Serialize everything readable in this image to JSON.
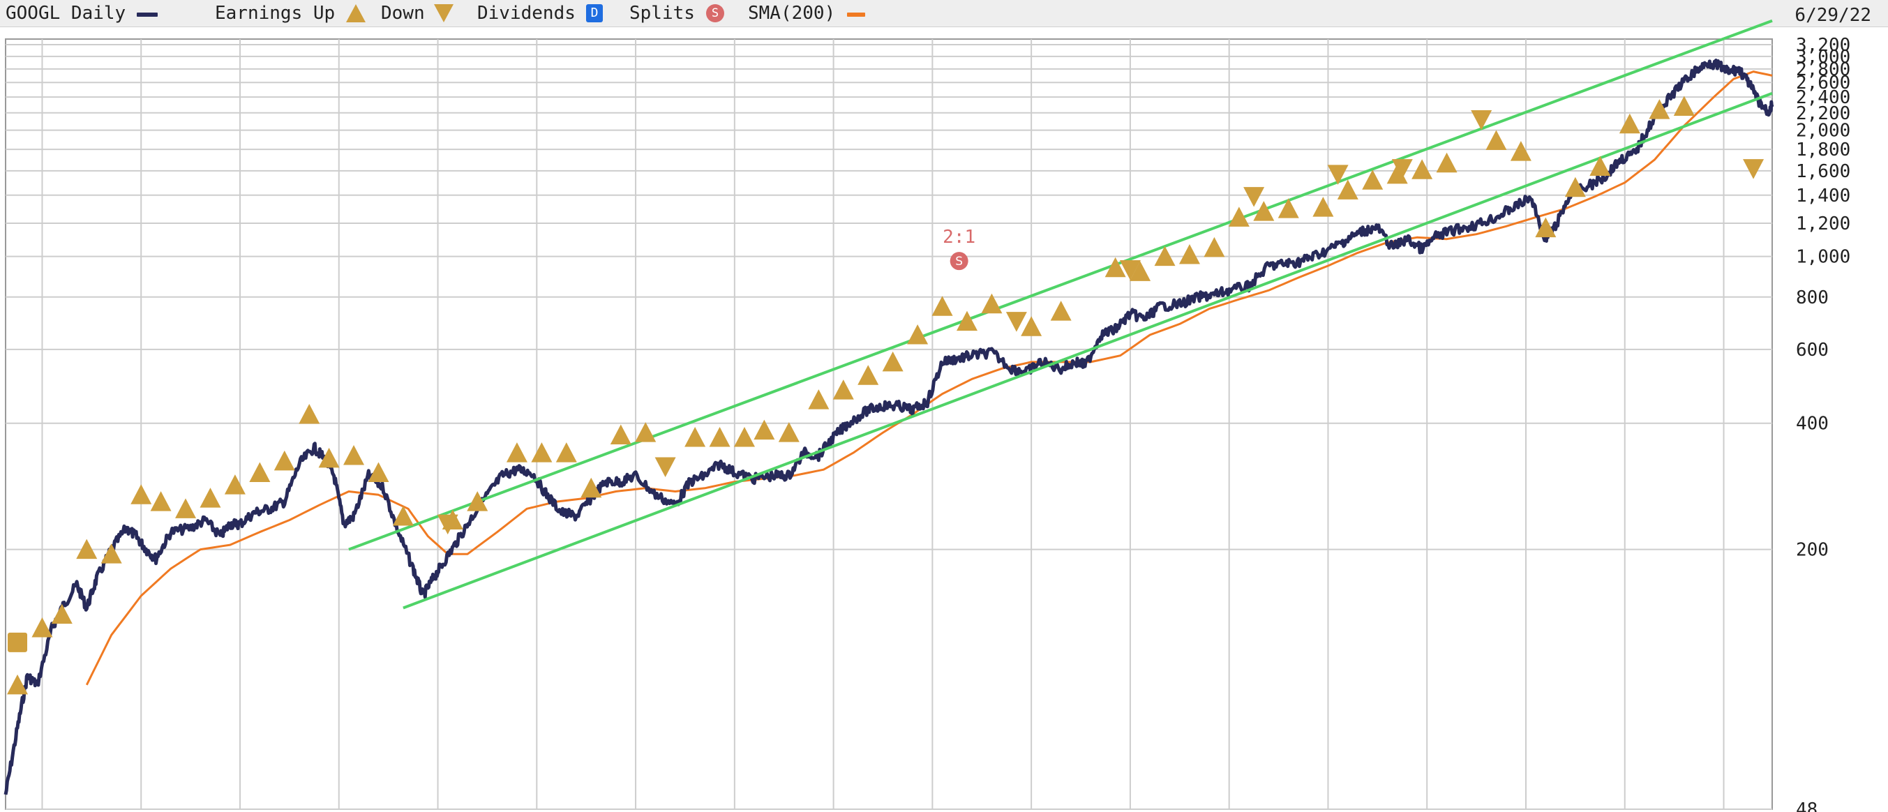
{
  "legend": {
    "ticker": "GOOGL Daily",
    "earnings_label": "Earnings Up",
    "down_label": "Down",
    "dividends_label": "Dividends",
    "dividend_symbol": "D",
    "splits_label": "Splits",
    "split_symbol": "S",
    "sma_label": "SMA(200)",
    "date": "6/29/22"
  },
  "colors": {
    "price": "#272a5a",
    "sma": "#f07a22",
    "trendline": "#4fd367",
    "earnings": "#cf9f3d",
    "dividends": "#1f6de0",
    "splits": "#d86a6a",
    "grid": "#cdcdcd"
  },
  "chart_data": {
    "type": "line",
    "scale": "log",
    "x_range": [
      2004.63,
      2022.49
    ],
    "ylim": [
      48,
      3300
    ],
    "y_ticks": [
      "3,200",
      "3,000",
      "2,800",
      "2,600",
      "2,400",
      "2,200",
      "2,000",
      "1,800",
      "1,600",
      "1,400",
      "1,200",
      "1,000",
      "800",
      "600",
      "400",
      "200",
      "48"
    ],
    "y_tick_values": [
      3200,
      3000,
      2800,
      2600,
      2400,
      2200,
      2000,
      1800,
      1600,
      1400,
      1200,
      1000,
      800,
      600,
      400,
      200,
      48
    ],
    "grid_years": [
      2005,
      2006,
      2007,
      2008,
      2009,
      2010,
      2011,
      2012,
      2013,
      2014,
      2015,
      2016,
      2017,
      2018,
      2019,
      2020,
      2021,
      2022
    ],
    "series": [
      {
        "x": [
          2004.63,
          2004.75,
          2004.85,
          2004.95,
          2005.1,
          2005.2,
          2005.35,
          2005.45,
          2005.55,
          2005.7,
          2005.85,
          2005.95,
          2006.05,
          2006.15,
          2006.3,
          2006.5,
          2006.65,
          2006.8,
          2006.9,
          2007.0,
          2007.15,
          2007.3,
          2007.45,
          2007.6,
          2007.75,
          2007.85,
          2007.95,
          2008.05,
          2008.15,
          2008.3,
          2008.45,
          2008.6,
          2008.75,
          2008.85,
          2008.95,
          2009.05,
          2009.2,
          2009.35,
          2009.5,
          2009.65,
          2009.8,
          2009.95,
          2010.1,
          2010.25,
          2010.4,
          2010.55,
          2010.7,
          2010.85,
          2011.0,
          2011.2,
          2011.4,
          2011.55,
          2011.7,
          2011.85,
          2012.0,
          2012.2,
          2012.4,
          2012.55,
          2012.7,
          2012.85,
          2013.0,
          2013.15,
          2013.35,
          2013.5,
          2013.65,
          2013.8,
          2013.95,
          2014.1,
          2014.25,
          2014.4,
          2014.6,
          2014.8,
          2014.95,
          2015.1,
          2015.3,
          2015.45,
          2015.55,
          2015.7,
          2015.85,
          2016.0,
          2016.15,
          2016.3,
          2016.5,
          2016.7,
          2016.85,
          2017.0,
          2017.2,
          2017.4,
          2017.55,
          2017.7,
          2017.85,
          2018.05,
          2018.2,
          2018.35,
          2018.5,
          2018.65,
          2018.8,
          2018.95,
          2019.1,
          2019.3,
          2019.5,
          2019.7,
          2019.85,
          2020.05,
          2020.2,
          2020.3,
          2020.45,
          2020.65,
          2020.8,
          2020.95,
          2021.1,
          2021.25,
          2021.4,
          2021.55,
          2021.7,
          2021.85,
          2021.95,
          2022.05,
          2022.15,
          2022.25,
          2022.35,
          2022.45,
          2022.49
        ],
        "values": [
          52,
          75,
          100,
          95,
          130,
          145,
          165,
          145,
          170,
          200,
          225,
          215,
          200,
          190,
          220,
          225,
          235,
          215,
          230,
          230,
          245,
          250,
          260,
          320,
          350,
          330,
          300,
          230,
          240,
          300,
          280,
          220,
          180,
          155,
          170,
          185,
          210,
          240,
          270,
          300,
          310,
          305,
          270,
          245,
          240,
          265,
          290,
          290,
          300,
          270,
          255,
          290,
          300,
          320,
          305,
          295,
          300,
          300,
          340,
          335,
          370,
          400,
          430,
          440,
          440,
          430,
          450,
          560,
          570,
          580,
          590,
          540,
          530,
          560,
          540,
          560,
          550,
          650,
          670,
          730,
          710,
          760,
          770,
          800,
          810,
          830,
          850,
          950,
          960,
          970,
          1000,
          1050,
          1100,
          1150,
          1170,
          1050,
          1100,
          1040,
          1120,
          1160,
          1190,
          1240,
          1300,
          1380,
          1100,
          1180,
          1410,
          1480,
          1550,
          1700,
          1760,
          2050,
          2300,
          2550,
          2750,
          2900,
          2850,
          2750,
          2800,
          2600,
          2350,
          2200,
          2300
        ]
      },
      {
        "x": [
          2005.45,
          2005.7,
          2006.0,
          2006.3,
          2006.6,
          2006.9,
          2007.2,
          2007.5,
          2007.8,
          2008.1,
          2008.4,
          2008.7,
          2008.9,
          2009.1,
          2009.3,
          2009.6,
          2009.9,
          2010.2,
          2010.5,
          2010.8,
          2011.1,
          2011.4,
          2011.7,
          2012.0,
          2012.3,
          2012.6,
          2012.9,
          2013.2,
          2013.5,
          2013.8,
          2014.1,
          2014.4,
          2014.7,
          2015.0,
          2015.3,
          2015.6,
          2015.9,
          2016.2,
          2016.5,
          2016.8,
          2017.1,
          2017.4,
          2017.7,
          2018.0,
          2018.3,
          2018.6,
          2018.9,
          2019.2,
          2019.5,
          2019.8,
          2020.1,
          2020.4,
          2020.7,
          2021.0,
          2021.3,
          2021.6,
          2021.9,
          2022.1,
          2022.3,
          2022.49
        ],
        "values": [
          95,
          125,
          155,
          180,
          200,
          205,
          220,
          235,
          255,
          275,
          270,
          250,
          215,
          195,
          195,
          220,
          250,
          260,
          265,
          275,
          280,
          275,
          280,
          290,
          295,
          300,
          310,
          340,
          380,
          420,
          470,
          510,
          540,
          560,
          560,
          560,
          580,
          650,
          690,
          750,
          790,
          830,
          890,
          950,
          1020,
          1080,
          1110,
          1100,
          1130,
          1180,
          1240,
          1300,
          1390,
          1500,
          1700,
          2050,
          2400,
          2650,
          2760,
          2700
        ]
      }
    ],
    "trendlines": [
      {
        "x": [
          2008.1,
          2022.49
        ],
        "values": [
          200,
          3650
        ]
      },
      {
        "x": [
          2008.65,
          2022.49
        ],
        "values": [
          145,
          2450
        ]
      }
    ],
    "events": {
      "earnings_up": [
        [
          2004.75,
          95
        ],
        [
          2005.0,
          130
        ],
        [
          2005.2,
          140
        ],
        [
          2005.45,
          200
        ],
        [
          2005.7,
          195
        ],
        [
          2006.0,
          270
        ],
        [
          2006.2,
          260
        ],
        [
          2006.45,
          250
        ],
        [
          2006.7,
          265
        ],
        [
          2006.95,
          285
        ],
        [
          2007.2,
          305
        ],
        [
          2007.45,
          325
        ],
        [
          2007.7,
          420
        ],
        [
          2007.9,
          330
        ],
        [
          2008.15,
          335
        ],
        [
          2008.4,
          305
        ],
        [
          2008.65,
          240
        ],
        [
          2009.15,
          235
        ],
        [
          2009.4,
          260
        ],
        [
          2009.8,
          340
        ],
        [
          2010.05,
          340
        ],
        [
          2010.3,
          340
        ],
        [
          2010.55,
          280
        ],
        [
          2010.85,
          375
        ],
        [
          2011.1,
          380
        ],
        [
          2011.6,
          370
        ],
        [
          2011.85,
          370
        ],
        [
          2012.1,
          370
        ],
        [
          2012.3,
          385
        ],
        [
          2012.55,
          380
        ],
        [
          2012.85,
          455
        ],
        [
          2013.1,
          480
        ],
        [
          2013.35,
          520
        ],
        [
          2013.6,
          560
        ],
        [
          2013.85,
          650
        ],
        [
          2014.1,
          760
        ],
        [
          2014.35,
          700
        ],
        [
          2014.6,
          770
        ],
        [
          2015.0,
          680
        ],
        [
          2015.3,
          740
        ],
        [
          2015.85,
          940
        ],
        [
          2016.1,
          920
        ],
        [
          2016.35,
          1000
        ],
        [
          2016.6,
          1010
        ],
        [
          2016.85,
          1050
        ],
        [
          2017.1,
          1240
        ],
        [
          2017.35,
          1280
        ],
        [
          2017.6,
          1300
        ],
        [
          2017.95,
          1310
        ],
        [
          2018.2,
          1440
        ],
        [
          2018.45,
          1520
        ],
        [
          2018.7,
          1570
        ],
        [
          2018.95,
          1610
        ],
        [
          2019.2,
          1670
        ],
        [
          2019.7,
          1890
        ],
        [
          2019.95,
          1780
        ],
        [
          2020.2,
          1170
        ],
        [
          2020.5,
          1460
        ],
        [
          2020.75,
          1640
        ],
        [
          2021.05,
          2070
        ],
        [
          2021.35,
          2240
        ],
        [
          2021.6,
          2280
        ]
      ],
      "earnings_down": [
        [
          2009.1,
          230
        ],
        [
          2011.3,
          315
        ],
        [
          2014.85,
          700
        ],
        [
          2016.0,
          930
        ],
        [
          2017.25,
          1390
        ],
        [
          2018.1,
          1570
        ],
        [
          2018.75,
          1620
        ],
        [
          2019.55,
          2120
        ],
        [
          2022.3,
          1620
        ]
      ],
      "earnings_box": [
        [
          2004.75,
          120
        ]
      ],
      "splits": [
        {
          "x": 2014.27,
          "value": 975,
          "label": "2:1"
        }
      ]
    }
  }
}
